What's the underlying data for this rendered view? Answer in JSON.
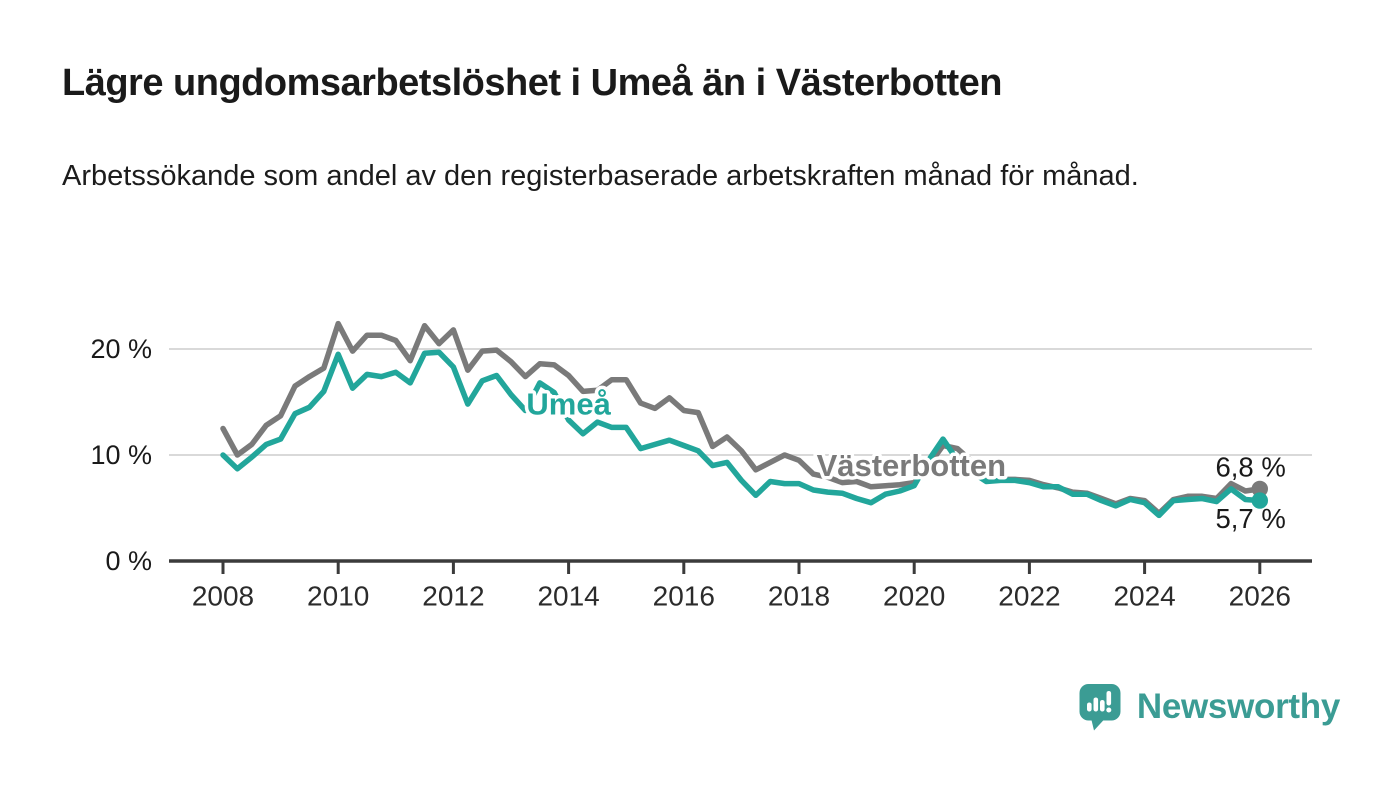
{
  "title": "Lägre ungdomsarbetslöshet i Umeå än i Västerbotten",
  "subtitle": "Arbetssökande som andel av den registerbaserade arbetskraften månad för månad.",
  "logo": {
    "text": "Newsworthy",
    "color": "#3b9c94",
    "icon": "speech-bubble-bar-chart-icon"
  },
  "colors": {
    "umea_line": "#22a69b",
    "vasterbotten_line": "#7a7a7a",
    "gridline": "#d9d9d9",
    "axis": "#3b3b3b",
    "text": "#1a1a1a"
  },
  "chart_data": {
    "type": "line",
    "title": "Lägre ungdomsarbetslöshet i Umeå än i Västerbotten",
    "xlabel": "",
    "ylabel": "Arbetssökande som andel av den registerbaserade arbetskraften",
    "unit": "%",
    "grid": "horizontal",
    "legend": "inline-labels",
    "ylim": [
      0,
      24
    ],
    "xlim": [
      2007.1,
      2026.9
    ],
    "x": [
      2008,
      2008.25,
      2008.5,
      2008.75,
      2009,
      2009.25,
      2009.5,
      2009.75,
      2010,
      2010.25,
      2010.5,
      2010.75,
      2011,
      2011.25,
      2011.5,
      2011.75,
      2012,
      2012.25,
      2012.5,
      2012.75,
      2013,
      2013.25,
      2013.5,
      2013.75,
      2014,
      2014.25,
      2014.5,
      2014.75,
      2015,
      2015.25,
      2015.5,
      2015.75,
      2016,
      2016.25,
      2016.5,
      2016.75,
      2017,
      2017.25,
      2017.5,
      2017.75,
      2018,
      2018.25,
      2018.5,
      2018.75,
      2019,
      2019.25,
      2019.5,
      2019.75,
      2020,
      2020.25,
      2020.5,
      2020.75,
      2021,
      2021.25,
      2021.5,
      2021.75,
      2022,
      2022.25,
      2022.5,
      2022.75,
      2023,
      2023.25,
      2023.5,
      2023.75,
      2024,
      2024.25,
      2024.5,
      2024.75,
      2025,
      2025.25,
      2025.5,
      2025.75,
      2026
    ],
    "series": [
      {
        "id": "vasterbotten",
        "name": "Västerbotten",
        "color": "#7a7a7a",
        "values": [
          12.5,
          10.0,
          11.0,
          12.8,
          13.7,
          16.5,
          17.4,
          18.2,
          22.4,
          19.8,
          21.3,
          21.3,
          20.8,
          18.9,
          22.2,
          20.5,
          21.8,
          18.0,
          19.8,
          19.9,
          18.8,
          17.4,
          18.6,
          18.5,
          17.5,
          16.0,
          16.1,
          17.1,
          17.1,
          14.9,
          14.4,
          15.4,
          14.2,
          14.0,
          10.8,
          11.7,
          10.4,
          8.6,
          9.3,
          10.0,
          9.5,
          8.2,
          7.9,
          7.4,
          7.5,
          7.0,
          7.1,
          7.2,
          7.4,
          9.0,
          10.9,
          10.6,
          9.4,
          7.6,
          7.7,
          7.7,
          7.6,
          7.2,
          6.9,
          6.5,
          6.4,
          5.9,
          5.4,
          5.9,
          5.7,
          4.5,
          5.8,
          6.1,
          6.1,
          5.9,
          7.3,
          6.6,
          6.8
        ],
        "label": {
          "text": "Västerbotten",
          "x": 2019.95,
          "y": 9.0
        },
        "end": {
          "label": "6,8 %",
          "value": 6.8,
          "dy": -22
        }
      },
      {
        "id": "umea",
        "name": "Umeå",
        "color": "#22a69b",
        "values": [
          10.0,
          8.7,
          9.8,
          11.0,
          11.5,
          13.9,
          14.5,
          16.0,
          19.5,
          16.3,
          17.6,
          17.4,
          17.8,
          16.8,
          19.6,
          19.7,
          18.3,
          14.8,
          17.0,
          17.5,
          15.7,
          14.2,
          16.8,
          15.9,
          13.3,
          12.0,
          13.1,
          12.6,
          12.6,
          10.6,
          11.0,
          11.4,
          10.9,
          10.4,
          9.0,
          9.3,
          7.6,
          6.2,
          7.5,
          7.3,
          7.3,
          6.7,
          6.5,
          6.4,
          5.9,
          5.5,
          6.3,
          6.6,
          7.1,
          9.5,
          11.5,
          9.5,
          8.4,
          7.5,
          7.6,
          7.6,
          7.4,
          7.0,
          7.0,
          6.3,
          6.3,
          5.7,
          5.2,
          5.8,
          5.5,
          4.3,
          5.7,
          5.8,
          5.9,
          5.6,
          6.8,
          5.8,
          5.7
        ],
        "label": {
          "text": "Umeå",
          "x": 2014.0,
          "y": 14.8
        },
        "end": {
          "label": "5,7 %",
          "value": 5.7,
          "dy": 18
        }
      }
    ],
    "yticks": [
      {
        "value": 0,
        "label": "0 %"
      },
      {
        "value": 10,
        "label": "10 %"
      },
      {
        "value": 20,
        "label": "20 %"
      }
    ],
    "xticks": [
      {
        "value": 2008,
        "label": "2008"
      },
      {
        "value": 2010,
        "label": "2010"
      },
      {
        "value": 2012,
        "label": "2012"
      },
      {
        "value": 2014,
        "label": "2014"
      },
      {
        "value": 2016,
        "label": "2016"
      },
      {
        "value": 2018,
        "label": "2018"
      },
      {
        "value": 2020,
        "label": "2020"
      },
      {
        "value": 2022,
        "label": "2022"
      },
      {
        "value": 2024,
        "label": "2024"
      },
      {
        "value": 2026,
        "label": "2026"
      }
    ]
  }
}
